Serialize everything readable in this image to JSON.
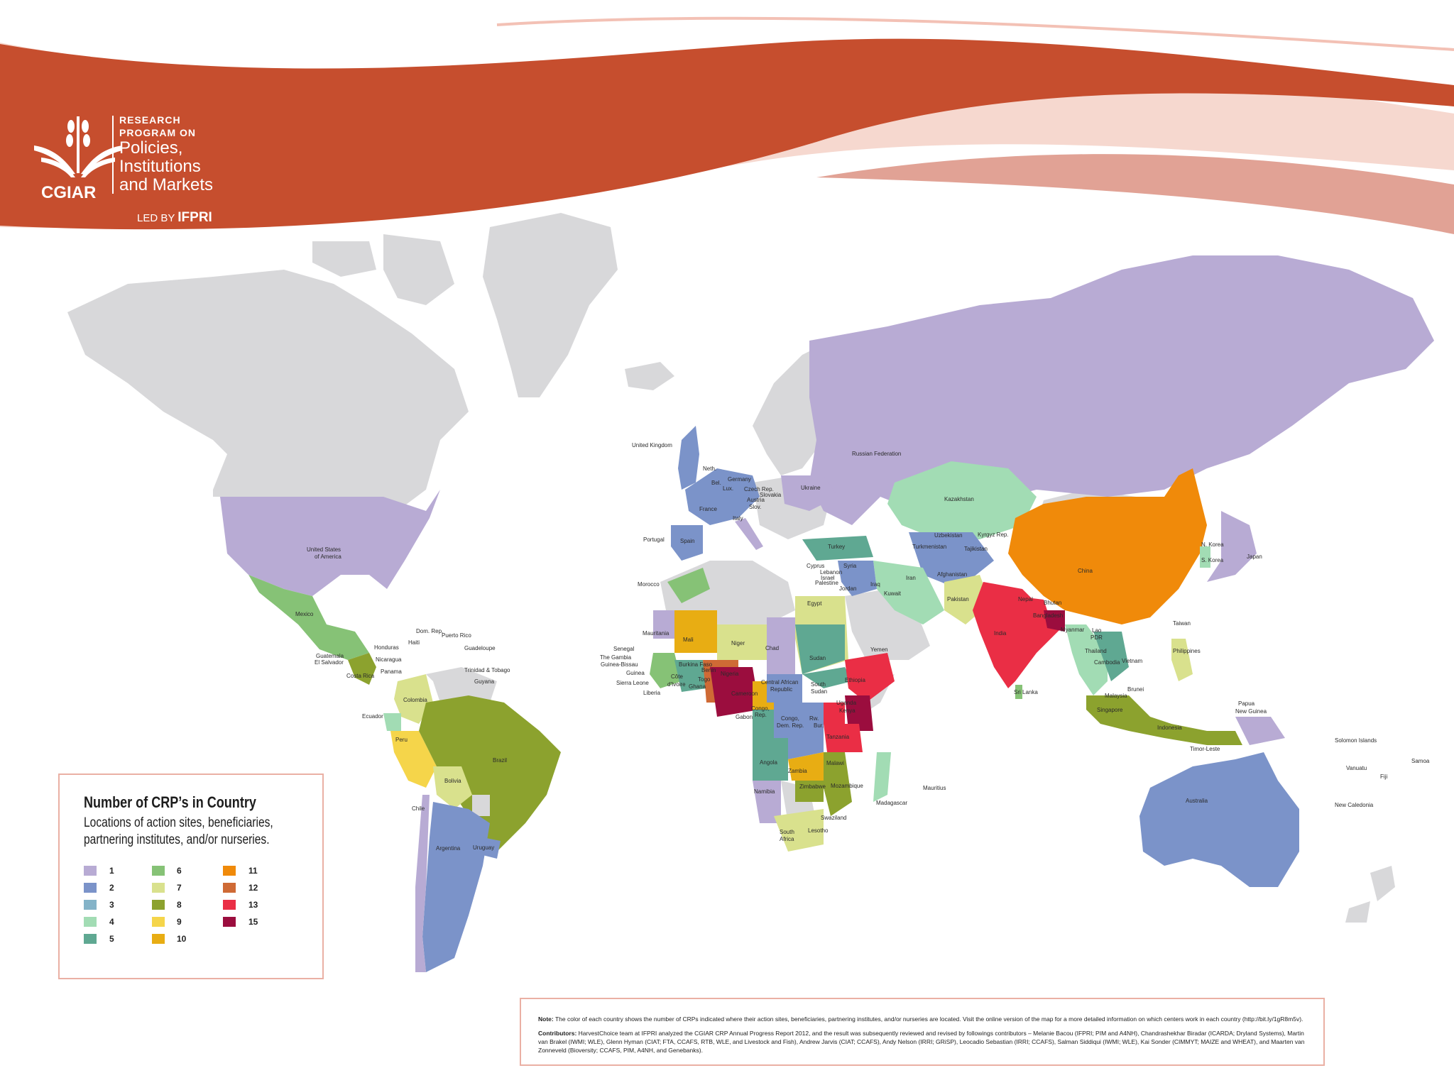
{
  "header": {
    "program_line1": "RESEARCH",
    "program_line2": "PROGRAM ON",
    "program_name1": "Policies,",
    "program_name2": "Institutions",
    "program_name3": "and Markets",
    "org": "CGIAR",
    "led_by": "LED BY",
    "led_by_org": "IFPRI"
  },
  "legend": {
    "title": "Number of CRP’s in Country",
    "subtitle": "Locations of action sites, beneficiaries, partnering institutes, and/or nurseries.",
    "items": [
      {
        "label": "1",
        "color": "#b8abd4"
      },
      {
        "label": "2",
        "color": "#7b93c9"
      },
      {
        "label": "3",
        "color": "#84b3c8"
      },
      {
        "label": "4",
        "color": "#a2dcb4"
      },
      {
        "label": "5",
        "color": "#5fa892"
      },
      {
        "label": "6",
        "color": "#86c276"
      },
      {
        "label": "7",
        "color": "#d9e18d"
      },
      {
        "label": "8",
        "color": "#8ca22e"
      },
      {
        "label": "9",
        "color": "#f5d54a"
      },
      {
        "label": "10",
        "color": "#e8ad13"
      },
      {
        "label": "11",
        "color": "#f08a0a"
      },
      {
        "label": "12",
        "color": "#cf6a35"
      },
      {
        "label": "13",
        "color": "#ea2e45"
      },
      {
        "label": "15",
        "color": "#9b0d3e"
      }
    ]
  },
  "countries": [
    "United Kingdom",
    "Neth.",
    "Bel.",
    "Lux.",
    "Germany",
    "Czech Rep.",
    "Slovakia",
    "Austria",
    "Slov.",
    "France",
    "Italy",
    "Portugal",
    "Spain",
    "Ukraine",
    "Russian Federation",
    "Kazakhstan",
    "Uzbekistan",
    "Kyrgyz Rep.",
    "Turkmenistan",
    "Tajikistan",
    "Turkey",
    "Cyprus",
    "Syria",
    "Lebanon",
    "Israel",
    "Palestine",
    "Jordan",
    "Iraq",
    "Iran",
    "Afghanistan",
    "Kuwait",
    "Pakistan",
    "Nepal",
    "Bhutan",
    "Bangladesh",
    "India",
    "Sri Lanka",
    "China",
    "N. Korea",
    "S. Korea",
    "Japan",
    "Taiwan",
    "Myanmar",
    "Lao PDR",
    "Thailand",
    "Cambodia",
    "Vietnam",
    "Philippines",
    "Malaysia",
    "Brunei",
    "Singapore",
    "Indonesia",
    "Timor-Leste",
    "Papua New Guinea",
    "Solomon Islands",
    "Vanuatu",
    "Fiji",
    "Samoa",
    "New Caledonia",
    "Australia",
    "United States of America",
    "Mexico",
    "Dom. Rep.",
    "Puerto Rico",
    "Haiti",
    "Guadeloupe",
    "Honduras",
    "Guatemala",
    "El Salvador",
    "Nicaragua",
    "Panama",
    "Costa Rica",
    "Trinidad & Tobago",
    "Guyana",
    "Colombia",
    "Ecuador",
    "Peru",
    "Brazil",
    "Bolivia",
    "Chile",
    "Argentina",
    "Uruguay",
    "Morocco",
    "Egypt",
    "Mauritania",
    "Mali",
    "Niger",
    "Chad",
    "Sudan",
    "Senegal",
    "The Gambia",
    "Guinea-Bissau",
    "Guinea",
    "Sierra Leone",
    "Liberia",
    "Côte d'Ivoire",
    "Burkina Faso",
    "Ghana",
    "Togo",
    "Benin",
    "Nigeria",
    "Cameroon",
    "Central African Republic",
    "South Sudan",
    "Ethiopia",
    "Yemen",
    "Uganda",
    "Kenya",
    "Congo, Rep.",
    "Gabon",
    "Congo, Dem. Rep.",
    "Rw.",
    "Bur.",
    "Tanzania",
    "Angola",
    "Zambia",
    "Malawi",
    "Mozambique",
    "Zimbabwe",
    "Namibia",
    "Madagascar",
    "Mauritius",
    "Swaziland",
    "Lesotho",
    "South Africa"
  ],
  "note": {
    "note_label": "Note:",
    "note_text": "The color of each country shows the number of CRPs indicated where their action sites, beneficiaries, partnering institutes, and/or nurseries are located. Visit the online version of the map for a more detailed information on which centers work in each country (http://bit.ly/1gR8m5v).",
    "contrib_label": "Contributors:",
    "contrib_text": "HarvestChoice team at IFPRI analyzed the CGIAR CRP Annual Progress Report 2012, and the result was subsequently reviewed and revised by followings contributors – Melanie Bacou (IFPRI; PIM and A4NH), Chandrashekhar Biradar (ICARDA; Dryland Systems), Martin van Brakel (IWMI; WLE), Glenn Hyman (CIAT; FTA, CCAFS, RTB, WLE, and Livestock and Fish), Andrew Jarvis (CIAT; CCAFS), Andy Nelson (IRRI; GRiSP), Leocadio Sebastian (IRRI; CCAFS), Salman Siddiqui (IWMI; WLE), Kai Sonder (CIMMYT; MAIZE and WHEAT), and Maarten van Zonneveld (Bioversity; CCAFS, PIM, A4NH, and Genebanks)."
  }
}
